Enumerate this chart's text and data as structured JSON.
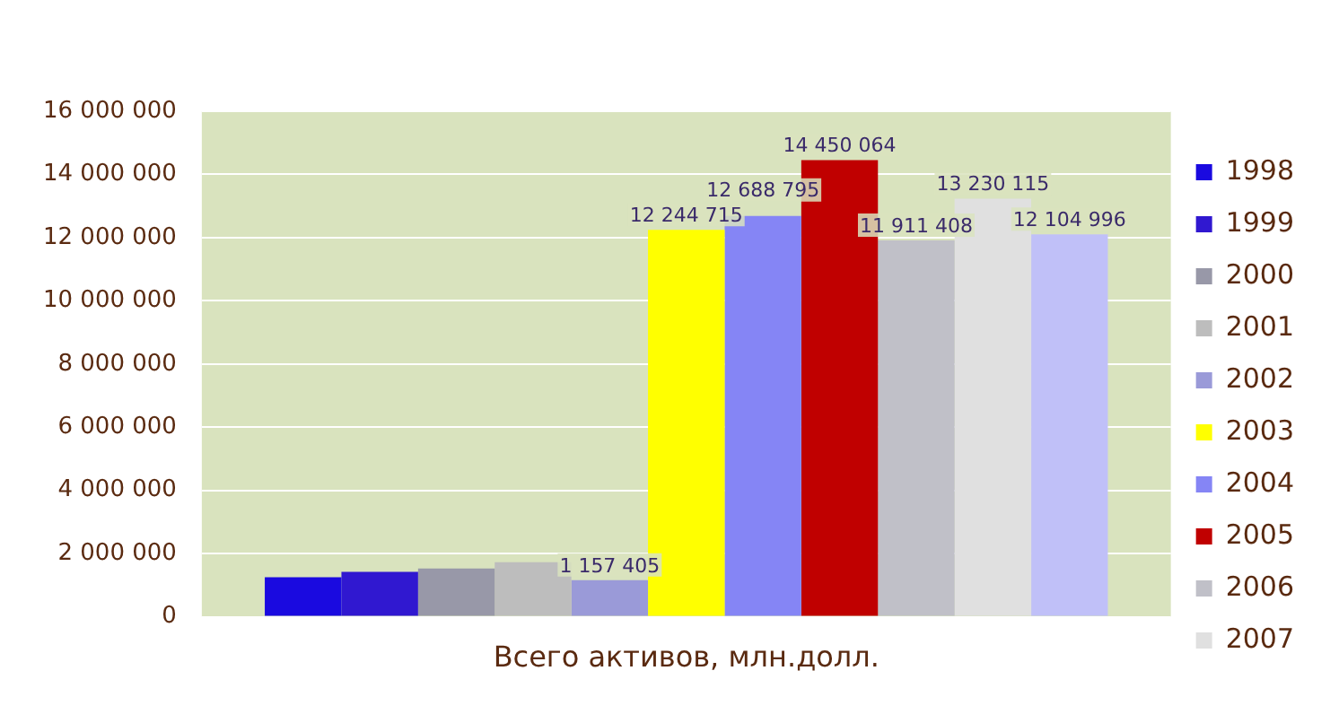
{
  "chart_data": {
    "type": "bar",
    "categories": [
      "Всего активов, млн.долл."
    ],
    "ylim": [
      0,
      16000000
    ],
    "yticks": [
      0,
      {
        "value": 2000000,
        "label": "2 000 000"
      },
      {
        "value": 4000000,
        "label": "4 000 000"
      },
      {
        "value": 6000000,
        "label": "6 000 000"
      },
      {
        "value": 8000000,
        "label": "8 000 000"
      },
      {
        "value": 10000000,
        "label": "10 000 000"
      },
      {
        "value": 12000000,
        "label": "12 000 000"
      },
      {
        "value": 14000000,
        "label": "14 000 000"
      },
      {
        "value": 16000000,
        "label": "16 000 000"
      }
    ],
    "grid": "y",
    "legend": "right",
    "series": [
      {
        "name": "1998",
        "color": "#1a0ae0",
        "values": [
          1250000
        ],
        "value_labels": [
          null
        ]
      },
      {
        "name": "1999",
        "color": "#3018d0",
        "values": [
          1420000
        ],
        "value_labels": [
          null
        ]
      },
      {
        "name": "2000",
        "color": "#9898a8",
        "values": [
          1530000
        ],
        "value_labels": [
          null
        ]
      },
      {
        "name": "2001",
        "color": "#bdbdbd",
        "values": [
          1730000
        ],
        "value_labels": [
          null
        ]
      },
      {
        "name": "2002",
        "color": "#9a9ad8",
        "values": [
          1157405
        ],
        "value_labels": [
          "1 157 405"
        ]
      },
      {
        "name": "2003",
        "color": "#ffff00",
        "values": [
          12244715
        ],
        "value_labels": [
          "12 244 715"
        ]
      },
      {
        "name": "2004",
        "color": "#8585f5",
        "values": [
          12688795
        ],
        "value_labels": [
          "12 688 795"
        ]
      },
      {
        "name": "2005",
        "color": "#c00000",
        "values": [
          14450064
        ],
        "value_labels": [
          "14 450 064"
        ]
      },
      {
        "name": "2006",
        "color": "#c0c0c8",
        "values": [
          11911408
        ],
        "value_labels": [
          "11 911 408"
        ]
      },
      {
        "name": "2007",
        "color": "#e0e0e0",
        "values": [
          13230115
        ],
        "value_labels": [
          "13 230 115"
        ]
      },
      {
        "color": "#c0c0f8",
        "values": [
          12104996
        ],
        "value_labels": [
          "12 104 996"
        ]
      }
    ]
  }
}
